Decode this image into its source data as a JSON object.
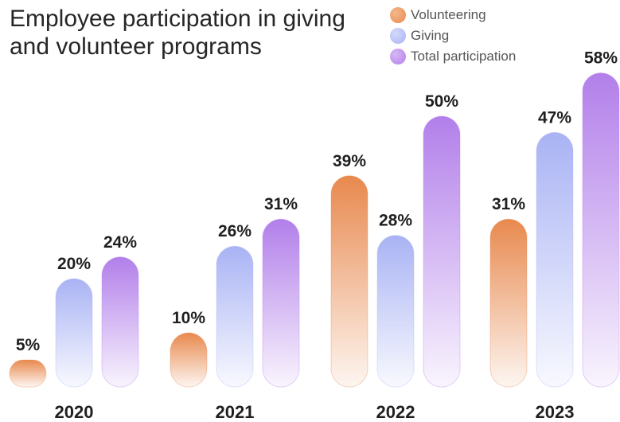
{
  "chart_data": {
    "type": "bar",
    "title": "Employee participation in giving and volunteer programs",
    "categories": [
      "2020",
      "2021",
      "2022",
      "2023"
    ],
    "series": [
      {
        "name": "Volunteering",
        "values": [
          5,
          10,
          39,
          31
        ],
        "color": "#E8894E"
      },
      {
        "name": "Giving",
        "values": [
          20,
          26,
          28,
          47
        ],
        "color": "#A9B3F4"
      },
      {
        "name": "Total participation",
        "values": [
          24,
          31,
          50,
          58
        ],
        "color": "#B27FEA"
      }
    ],
    "value_suffix": "%",
    "ylim": [
      0,
      60
    ],
    "legend": "top-right",
    "grid": false
  }
}
